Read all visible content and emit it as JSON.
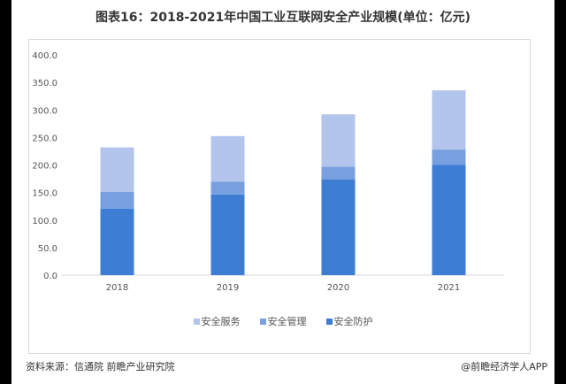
{
  "title": "图表16：2018-2021年中国工业互联网安全产业规模(单位：亿元)",
  "source": "资料来源：信通院 前瞻产业研究院",
  "credit": "@前瞻经济学人APP",
  "watermark": "前瞻产业研究院",
  "chart_data": {
    "type": "bar",
    "stacked": true,
    "categories": [
      "2018",
      "2019",
      "2020",
      "2021"
    ],
    "series": [
      {
        "name": "安全防护",
        "values": [
          121.0,
          146.5,
          173.5,
          200.0
        ],
        "color": "#3d7dd4"
      },
      {
        "name": "安全管理",
        "values": [
          30.5,
          23.5,
          23.5,
          28.0
        ],
        "color": "#789fe0"
      },
      {
        "name": "安全服务",
        "values": [
          80.5,
          82.5,
          95.0,
          107.5
        ],
        "color": "#b3c5ec"
      }
    ],
    "legend_order": [
      "安全服务",
      "安全管理",
      "安全防护"
    ],
    "ylim": [
      0,
      400
    ],
    "yticks": [
      "0.0",
      "50.0",
      "100.0",
      "150.0",
      "200.0",
      "250.0",
      "300.0",
      "350.0",
      "400.0"
    ],
    "grid": false,
    "legend_position": "bottom"
  }
}
